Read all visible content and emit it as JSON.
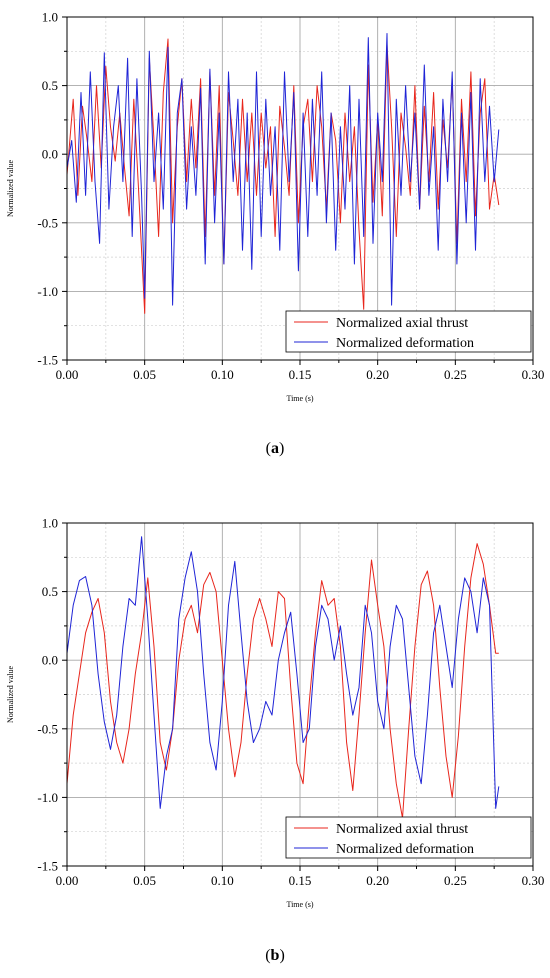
{
  "chart_data": [
    {
      "type": "line",
      "caption": "a",
      "xlabel": "Time (s)",
      "ylabel": "Normalized value",
      "xlim": [
        0.0,
        0.3
      ],
      "ylim": [
        -1.5,
        1.0
      ],
      "xticks": [
        "0.00",
        "0.05",
        "0.10",
        "0.15",
        "0.20",
        "0.25",
        "0.30"
      ],
      "yticks": [
        "1.0",
        "0.5",
        "0.0",
        "-0.5",
        "-1.0",
        "-1.5"
      ],
      "grid": true,
      "legend_position": "bottom-right",
      "series": [
        {
          "name": "Normalized axial thrust",
          "color": "#e8261c",
          "x": [
            0.0,
            0.004,
            0.007,
            0.01,
            0.013,
            0.016,
            0.019,
            0.022,
            0.025,
            0.028,
            0.031,
            0.034,
            0.037,
            0.04,
            0.043,
            0.046,
            0.05,
            0.053,
            0.056,
            0.059,
            0.062,
            0.065,
            0.068,
            0.071,
            0.074,
            0.077,
            0.08,
            0.083,
            0.086,
            0.089,
            0.092,
            0.095,
            0.098,
            0.101,
            0.104,
            0.107,
            0.11,
            0.113,
            0.116,
            0.119,
            0.122,
            0.125,
            0.128,
            0.131,
            0.134,
            0.137,
            0.14,
            0.143,
            0.146,
            0.149,
            0.152,
            0.155,
            0.158,
            0.161,
            0.164,
            0.167,
            0.17,
            0.173,
            0.176,
            0.179,
            0.182,
            0.185,
            0.188,
            0.191,
            0.194,
            0.197,
            0.2,
            0.203,
            0.206,
            0.209,
            0.212,
            0.215,
            0.218,
            0.221,
            0.224,
            0.227,
            0.23,
            0.233,
            0.236,
            0.239,
            0.242,
            0.245,
            0.248,
            0.251,
            0.254,
            0.257,
            0.26,
            0.263,
            0.266,
            0.269,
            0.272,
            0.275,
            0.278
          ],
          "y": [
            -0.15,
            0.4,
            -0.3,
            0.35,
            0.1,
            -0.2,
            0.5,
            -0.1,
            0.64,
            0.2,
            -0.05,
            0.3,
            -0.1,
            -0.45,
            0.4,
            -0.25,
            -1.16,
            0.7,
            0.1,
            -0.6,
            0.45,
            0.84,
            -0.5,
            0.2,
            0.55,
            -0.2,
            0.4,
            -0.1,
            0.55,
            -0.6,
            0.6,
            -0.3,
            0.5,
            -0.8,
            0.45,
            0.1,
            -0.3,
            0.4,
            -0.2,
            0.3,
            -0.3,
            0.3,
            -0.1,
            0.2,
            -0.6,
            0.35,
            0.05,
            -0.3,
            0.5,
            -0.5,
            0.2,
            0.4,
            -0.2,
            0.5,
            0.2,
            -0.4,
            0.3,
            0.1,
            -0.5,
            0.3,
            -0.2,
            0.2,
            -0.55,
            -1.13,
            0.65,
            -0.35,
            0.25,
            -0.45,
            0.8,
            0.2,
            -0.6,
            0.3,
            0.05,
            -0.3,
            0.5,
            -0.4,
            0.35,
            -0.2,
            0.45,
            -0.4,
            0.25,
            -0.1,
            0.55,
            -0.65,
            0.4,
            -0.2,
            0.6,
            -0.45,
            0.3,
            0.55,
            -0.4,
            -0.15,
            -0.37
          ]
        },
        {
          "name": "Normalized deformation",
          "color": "#1f24d6",
          "x": [
            0.0,
            0.003,
            0.006,
            0.009,
            0.012,
            0.015,
            0.018,
            0.021,
            0.024,
            0.027,
            0.03,
            0.033,
            0.036,
            0.039,
            0.042,
            0.045,
            0.048,
            0.05,
            0.053,
            0.056,
            0.059,
            0.062,
            0.065,
            0.068,
            0.071,
            0.074,
            0.077,
            0.08,
            0.083,
            0.086,
            0.089,
            0.092,
            0.095,
            0.098,
            0.101,
            0.104,
            0.107,
            0.11,
            0.113,
            0.116,
            0.119,
            0.122,
            0.125,
            0.128,
            0.131,
            0.134,
            0.137,
            0.14,
            0.143,
            0.146,
            0.149,
            0.152,
            0.155,
            0.158,
            0.161,
            0.164,
            0.167,
            0.17,
            0.173,
            0.176,
            0.179,
            0.182,
            0.185,
            0.188,
            0.191,
            0.194,
            0.197,
            0.2,
            0.203,
            0.206,
            0.209,
            0.212,
            0.215,
            0.218,
            0.221,
            0.224,
            0.227,
            0.23,
            0.233,
            0.236,
            0.239,
            0.242,
            0.245,
            0.248,
            0.251,
            0.254,
            0.257,
            0.26,
            0.263,
            0.266,
            0.269,
            0.272,
            0.275,
            0.278
          ],
          "y": [
            -0.1,
            0.1,
            -0.35,
            0.45,
            -0.3,
            0.6,
            -0.2,
            -0.65,
            0.74,
            -0.4,
            0.2,
            0.5,
            -0.2,
            0.7,
            -0.6,
            0.55,
            -0.3,
            -1.05,
            0.75,
            -0.2,
            0.3,
            -0.4,
            0.78,
            -1.1,
            0.3,
            0.55,
            -0.4,
            0.2,
            -0.3,
            0.48,
            -0.8,
            0.62,
            -0.5,
            0.3,
            -0.8,
            0.6,
            -0.2,
            0.4,
            -0.7,
            0.3,
            -0.84,
            0.6,
            -0.6,
            0.4,
            -0.3,
            0.2,
            -0.7,
            0.6,
            -0.2,
            0.45,
            -0.85,
            0.3,
            -0.6,
            0.4,
            -0.3,
            0.6,
            -0.5,
            0.3,
            -0.7,
            0.2,
            -0.4,
            0.5,
            -0.8,
            0.4,
            -0.6,
            0.85,
            -0.65,
            0.3,
            -0.2,
            0.88,
            -1.1,
            0.4,
            -0.3,
            0.5,
            -0.2,
            0.3,
            -0.4,
            0.65,
            -0.3,
            0.2,
            -0.7,
            0.4,
            -0.2,
            0.6,
            -0.8,
            0.3,
            -0.5,
            0.45,
            -0.7,
            0.55,
            -0.2,
            0.35,
            -0.2,
            0.18
          ]
        }
      ]
    },
    {
      "type": "line",
      "caption": "b",
      "xlabel": "Time (s)",
      "ylabel": "Normalized value",
      "xlim": [
        0.0,
        0.3
      ],
      "ylim": [
        -1.5,
        1.0
      ],
      "xticks": [
        "0.00",
        "0.05",
        "0.10",
        "0.15",
        "0.20",
        "0.25",
        "0.30"
      ],
      "yticks": [
        "1.0",
        "0.5",
        "0.0",
        "-0.5",
        "-1.0",
        "-1.5"
      ],
      "grid": true,
      "legend_position": "bottom-right",
      "series": [
        {
          "name": "Normalized axial thrust",
          "color": "#e8261c",
          "x": [
            0.0,
            0.004,
            0.008,
            0.012,
            0.016,
            0.02,
            0.024,
            0.028,
            0.032,
            0.036,
            0.04,
            0.044,
            0.048,
            0.052,
            0.056,
            0.06,
            0.064,
            0.068,
            0.072,
            0.076,
            0.08,
            0.084,
            0.088,
            0.092,
            0.096,
            0.1,
            0.104,
            0.108,
            0.112,
            0.116,
            0.12,
            0.124,
            0.128,
            0.132,
            0.136,
            0.14,
            0.144,
            0.148,
            0.152,
            0.156,
            0.16,
            0.164,
            0.168,
            0.172,
            0.176,
            0.18,
            0.184,
            0.188,
            0.192,
            0.196,
            0.2,
            0.204,
            0.208,
            0.212,
            0.216,
            0.22,
            0.224,
            0.228,
            0.232,
            0.236,
            0.24,
            0.244,
            0.248,
            0.252,
            0.256,
            0.26,
            0.264,
            0.268,
            0.272,
            0.276,
            0.278
          ],
          "y": [
            -0.9,
            -0.4,
            -0.1,
            0.2,
            0.35,
            0.45,
            0.2,
            -0.3,
            -0.6,
            -0.75,
            -0.5,
            -0.1,
            0.2,
            0.6,
            0.1,
            -0.6,
            -0.8,
            -0.5,
            0.0,
            0.3,
            0.4,
            0.2,
            0.55,
            0.64,
            0.5,
            0.0,
            -0.5,
            -0.85,
            -0.6,
            -0.1,
            0.3,
            0.45,
            0.3,
            0.1,
            0.5,
            0.45,
            -0.2,
            -0.75,
            -0.9,
            -0.3,
            0.2,
            0.58,
            0.4,
            0.45,
            0.1,
            -0.6,
            -0.95,
            -0.4,
            0.2,
            0.73,
            0.4,
            0.1,
            -0.5,
            -0.9,
            -1.15,
            -0.5,
            0.1,
            0.55,
            0.65,
            0.4,
            -0.2,
            -0.7,
            -1.0,
            -0.55,
            0.1,
            0.6,
            0.85,
            0.7,
            0.4,
            0.05,
            0.05
          ]
        },
        {
          "name": "Normalized deformation",
          "color": "#1f24d6",
          "x": [
            0.0,
            0.004,
            0.008,
            0.012,
            0.016,
            0.02,
            0.024,
            0.028,
            0.032,
            0.036,
            0.04,
            0.044,
            0.048,
            0.052,
            0.056,
            0.06,
            0.064,
            0.068,
            0.072,
            0.076,
            0.08,
            0.084,
            0.088,
            0.092,
            0.096,
            0.1,
            0.104,
            0.108,
            0.112,
            0.116,
            0.12,
            0.124,
            0.128,
            0.132,
            0.136,
            0.14,
            0.144,
            0.148,
            0.152,
            0.156,
            0.16,
            0.164,
            0.168,
            0.172,
            0.176,
            0.18,
            0.184,
            0.188,
            0.192,
            0.196,
            0.2,
            0.204,
            0.208,
            0.212,
            0.216,
            0.22,
            0.224,
            0.228,
            0.232,
            0.236,
            0.24,
            0.244,
            0.248,
            0.252,
            0.256,
            0.26,
            0.264,
            0.268,
            0.272,
            0.276,
            0.278
          ],
          "y": [
            0.05,
            0.4,
            0.58,
            0.61,
            0.4,
            -0.1,
            -0.45,
            -0.65,
            -0.4,
            0.1,
            0.45,
            0.4,
            0.9,
            0.3,
            -0.4,
            -1.08,
            -0.7,
            -0.5,
            0.3,
            0.6,
            0.79,
            0.5,
            -0.1,
            -0.6,
            -0.8,
            -0.3,
            0.4,
            0.72,
            0.2,
            -0.3,
            -0.6,
            -0.5,
            -0.3,
            -0.4,
            0.0,
            0.2,
            0.35,
            -0.1,
            -0.6,
            -0.5,
            0.1,
            0.4,
            0.3,
            0.0,
            0.25,
            -0.1,
            -0.4,
            -0.2,
            0.4,
            0.2,
            -0.3,
            -0.5,
            0.1,
            0.4,
            0.3,
            -0.2,
            -0.7,
            -0.9,
            -0.4,
            0.2,
            0.4,
            0.1,
            -0.2,
            0.3,
            0.6,
            0.5,
            0.2,
            0.6,
            0.4,
            -1.08,
            -0.92
          ]
        }
      ]
    }
  ]
}
